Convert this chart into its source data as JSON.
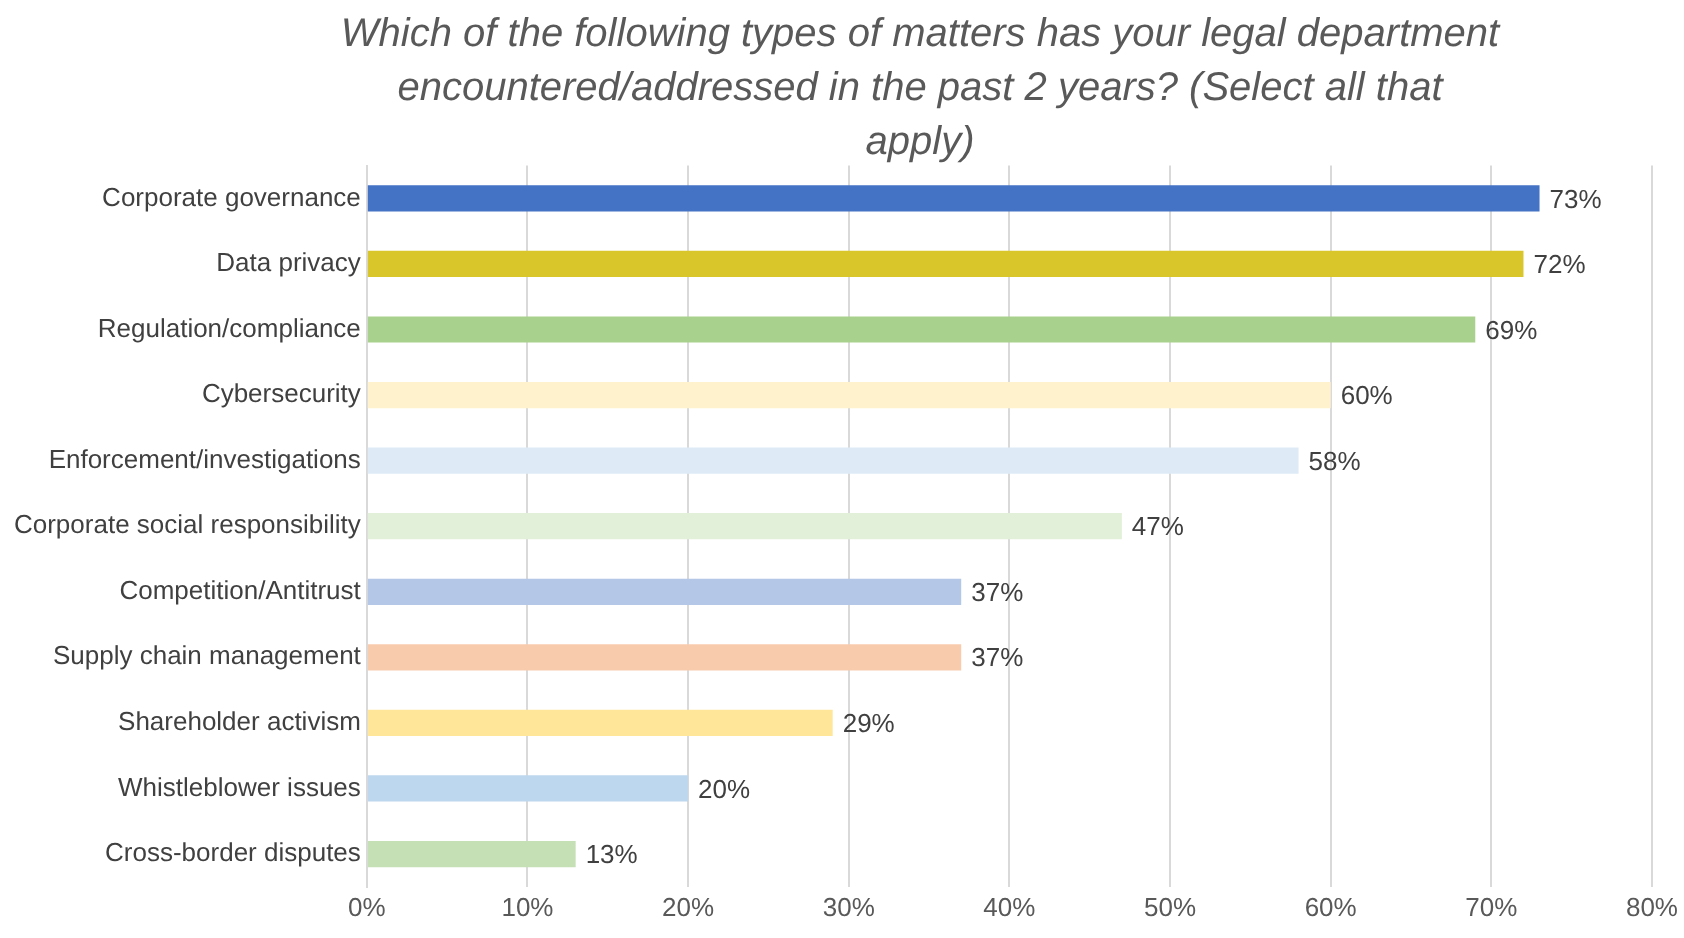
{
  "chart_data": {
    "type": "bar",
    "orientation": "horizontal",
    "title": "Which of the following types of matters has your legal department encountered/addressed in the past 2 years? (Select all that apply)",
    "categories": [
      "Corporate governance",
      "Data privacy",
      "Regulation/compliance",
      "Cybersecurity",
      "Enforcement/investigations",
      "Corporate social responsibility",
      "Competition/Antitrust",
      "Supply chain management",
      "Shareholder activism",
      "Whistleblower issues",
      "Cross-border disputes"
    ],
    "values": [
      73,
      72,
      69,
      60,
      58,
      47,
      37,
      37,
      29,
      20,
      13
    ],
    "colors": [
      "#4472c4",
      "#d9c62a",
      "#a9d18e",
      "#fff2cc",
      "#deebf7",
      "#e2f0d9",
      "#b4c7e7",
      "#f8cbad",
      "#ffe699",
      "#bdd7ee",
      "#c5e0b4"
    ],
    "value_labels": [
      "73%",
      "72%",
      "69%",
      "60%",
      "58%",
      "47%",
      "37%",
      "37%",
      "29%",
      "20%",
      "13%"
    ],
    "xlim": [
      0,
      80
    ],
    "xticks": [
      {
        "value": 0,
        "label": "0%"
      },
      {
        "value": 10,
        "label": "10%"
      },
      {
        "value": 20,
        "label": "20%"
      },
      {
        "value": 30,
        "label": "30%"
      },
      {
        "value": 40,
        "label": "40%"
      },
      {
        "value": 50,
        "label": "50%"
      },
      {
        "value": 60,
        "label": "60%"
      },
      {
        "value": 70,
        "label": "70%"
      },
      {
        "value": 80,
        "label": "80%"
      }
    ],
    "grid": "x",
    "legend": false
  }
}
